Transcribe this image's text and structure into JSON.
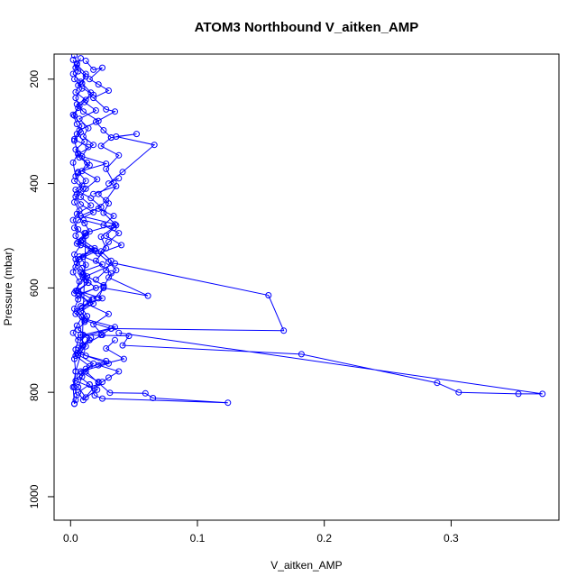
{
  "chart_data": {
    "type": "line",
    "title": "ATOM3 Northbound V_aitken_AMP",
    "xlabel": "V_aitken_AMP",
    "ylabel": "Pressure (mbar)",
    "xlim": [
      -0.013,
      0.385
    ],
    "ylim": [
      1045,
      152
    ],
    "y_axis_reversed": true,
    "x_ticks": [
      {
        "v": 0.0,
        "label": "0.0"
      },
      {
        "v": 0.1,
        "label": "0.1"
      },
      {
        "v": 0.2,
        "label": "0.2"
      },
      {
        "v": 0.3,
        "label": "0.3"
      }
    ],
    "y_ticks": [
      {
        "v": 200,
        "label": "200"
      },
      {
        "v": 400,
        "label": "400"
      },
      {
        "v": 600,
        "label": "600"
      },
      {
        "v": 800,
        "label": "800"
      },
      {
        "v": 1000,
        "label": "1000"
      }
    ],
    "grid": false,
    "marker": "open-circle",
    "color": "#0000ff",
    "series": [
      {
        "x": [
          0.003,
          0.005,
          0.002,
          0.008,
          0.004,
          0.012,
          0.006,
          0.003,
          0.009,
          0.005,
          0.011,
          0.004,
          0.007,
          0.015,
          0.006,
          0.003,
          0.01,
          0.004,
          0.008,
          0.018,
          0.006,
          0.003,
          0.012,
          0.005,
          0.02,
          0.007,
          0.004,
          0.009,
          0.014,
          0.005,
          0.025,
          0.008,
          0.004,
          0.011,
          0.006,
          0.016,
          0.009,
          0.005,
          0.028,
          0.012,
          0.007,
          0.015,
          0.006,
          0.01,
          0.022,
          0.008,
          0.03,
          0.012,
          0.006,
          0.015,
          0.01,
          0.035,
          0.012,
          0.008,
          0.018,
          0.006,
          0.02,
          0.012,
          0.008,
          0.025,
          0.01,
          0.016,
          0.008,
          0.012,
          0.009,
          0.004,
          0.003,
          0.005,
          0.004,
          0.003
        ],
        "y": [
          155,
          170,
          190,
          205,
          225,
          240,
          255,
          270,
          290,
          305,
          320,
          335,
          350,
          365,
          380,
          395,
          410,
          425,
          440,
          455,
          470,
          485,
          500,
          515,
          530,
          545,
          560,
          575,
          590,
          605,
          620,
          635,
          650,
          665,
          680,
          695,
          710,
          725,
          740,
          755,
          770,
          785,
          800,
          815,
          780,
          760,
          745,
          730,
          715,
          700,
          690,
          675,
          660,
          645,
          630,
          615,
          600,
          585,
          570,
          555,
          540,
          525,
          510,
          495,
          720,
          760,
          790,
          805,
          815,
          822
        ]
      },
      {
        "x": [
          0.008,
          0.004,
          0.012,
          0.006,
          0.018,
          0.005,
          0.01,
          0.022,
          0.007,
          0.003,
          0.014,
          0.009,
          0.028,
          0.006,
          0.012,
          0.004,
          0.016,
          0.024,
          0.008,
          0.035,
          0.011,
          0.006,
          0.019,
          0.004,
          0.009,
          0.013,
          0.026,
          0.007,
          0.015,
          0.005,
          0.011,
          0.032,
          0.008,
          0.012,
          0.006,
          0.018,
          0.009,
          0.004,
          0.021,
          0.012,
          0.006,
          0.009,
          0.015,
          0.004,
          0.01,
          0.025,
          0.018,
          0.03,
          0.012
        ],
        "y": [
          160,
          178,
          195,
          212,
          230,
          248,
          262,
          280,
          298,
          315,
          330,
          348,
          362,
          378,
          395,
          412,
          428,
          445,
          462,
          478,
          495,
          512,
          528,
          545,
          562,
          578,
          595,
          612,
          628,
          645,
          662,
          678,
          695,
          712,
          728,
          745,
          762,
          778,
          795,
          810,
          790,
          770,
          750,
          730,
          710,
          690,
          670,
          650,
          630
        ]
      },
      {
        "x": [
          0.002,
          0.006,
          0.003,
          0.009,
          0.004,
          0.007,
          0.002,
          0.005,
          0.008,
          0.003,
          0.006,
          0.002,
          0.004,
          0.009,
          0.005,
          0.003,
          0.007,
          0.002,
          0.006,
          0.004,
          0.008,
          0.003,
          0.005,
          0.002,
          0.007,
          0.004,
          0.006,
          0.003,
          0.009,
          0.005,
          0.002,
          0.006,
          0.004,
          0.003,
          0.004,
          0.002,
          0.003
        ],
        "y": [
          163,
          185,
          200,
          218,
          236,
          252,
          268,
          286,
          302,
          318,
          342,
          360,
          386,
          404,
          420,
          436,
          452,
          470,
          488,
          500,
          518,
          536,
          552,
          570,
          588,
          606,
          622,
          640,
          656,
          672,
          686,
          700,
          718,
          736,
          760,
          790,
          822
        ]
      },
      {
        "x": [
          0.012,
          0.018,
          0.025,
          0.015,
          0.022,
          0.03,
          0.018,
          0.028,
          0.035,
          0.02,
          0.026,
          0.032,
          0.024,
          0.038,
          0.028,
          0.034,
          0.022,
          0.03,
          0.026,
          0.036,
          0.024,
          0.028,
          0.02,
          0.032,
          0.026,
          0.022
        ],
        "y": [
          165,
          182,
          178,
          200,
          210,
          222,
          236,
          258,
          262,
          282,
          298,
          312,
          328,
          346,
          372,
          398,
          420,
          438,
          456,
          480,
          502,
          524,
          548,
          572,
          598,
          620
        ]
      },
      {
        "x": [
          0.032,
          0.052,
          0.036,
          0.066,
          0.041,
          0.03,
          0.038
        ],
        "y": [
          312,
          305,
          310,
          326,
          378,
          400,
          390
        ]
      },
      {
        "x": [
          0.018,
          0.036,
          0.028,
          0.022,
          0.034,
          0.026,
          0.038,
          0.03,
          0.024,
          0.032,
          0.028,
          0.02
        ],
        "y": [
          420,
          405,
          432,
          448,
          462,
          480,
          495,
          512,
          530,
          548,
          566,
          584
        ]
      },
      {
        "x": [
          0.01,
          0.034,
          0.028,
          0.04,
          0.022,
          0.03,
          0.036,
          0.03,
          0.061,
          0.026,
          0.018
        ],
        "y": [
          470,
          485,
          500,
          518,
          534,
          550,
          566,
          580,
          615,
          600,
          622
        ]
      },
      {
        "x": [
          0.003,
          0.01,
          0.035,
          0.156,
          0.168,
          0.032,
          0.024
        ],
        "y": [
          610,
          580,
          553,
          614,
          682,
          678,
          690
        ]
      },
      {
        "x": [
          0.008,
          0.046,
          0.041,
          0.182,
          0.289,
          0.306,
          0.353,
          0.372,
          0.038
        ],
        "y": [
          690,
          692,
          710,
          727,
          782,
          800,
          803,
          803,
          686
        ]
      },
      {
        "x": [
          0.035,
          0.028,
          0.042,
          0.022,
          0.038,
          0.03,
          0.025,
          0.019
        ],
        "y": [
          700,
          716,
          736,
          748,
          760,
          772,
          780,
          792
        ]
      },
      {
        "x": [
          0.012,
          0.022,
          0.031,
          0.059,
          0.065,
          0.124,
          0.025,
          0.019,
          0.015
        ],
        "y": [
          760,
          782,
          801,
          802,
          811,
          820,
          812,
          806,
          785
        ]
      },
      {
        "x": [
          0.005,
          0.012,
          0.009,
          0.016,
          0.011,
          0.02,
          0.007,
          0.014,
          0.01,
          0.018,
          0.006,
          0.013,
          0.009,
          0.021,
          0.012,
          0.008,
          0.016,
          0.005,
          0.011,
          0.015,
          0.009,
          0.019,
          0.007,
          0.012,
          0.01,
          0.014,
          0.006,
          0.017,
          0.009,
          0.013
        ],
        "y": [
          172,
          190,
          208,
          226,
          244,
          260,
          276,
          294,
          310,
          326,
          344,
          360,
          376,
          392,
          410,
          426,
          442,
          458,
          476,
          492,
          508,
          524,
          540,
          556,
          574,
          590,
          606,
          622,
          638,
          654
        ]
      }
    ]
  }
}
